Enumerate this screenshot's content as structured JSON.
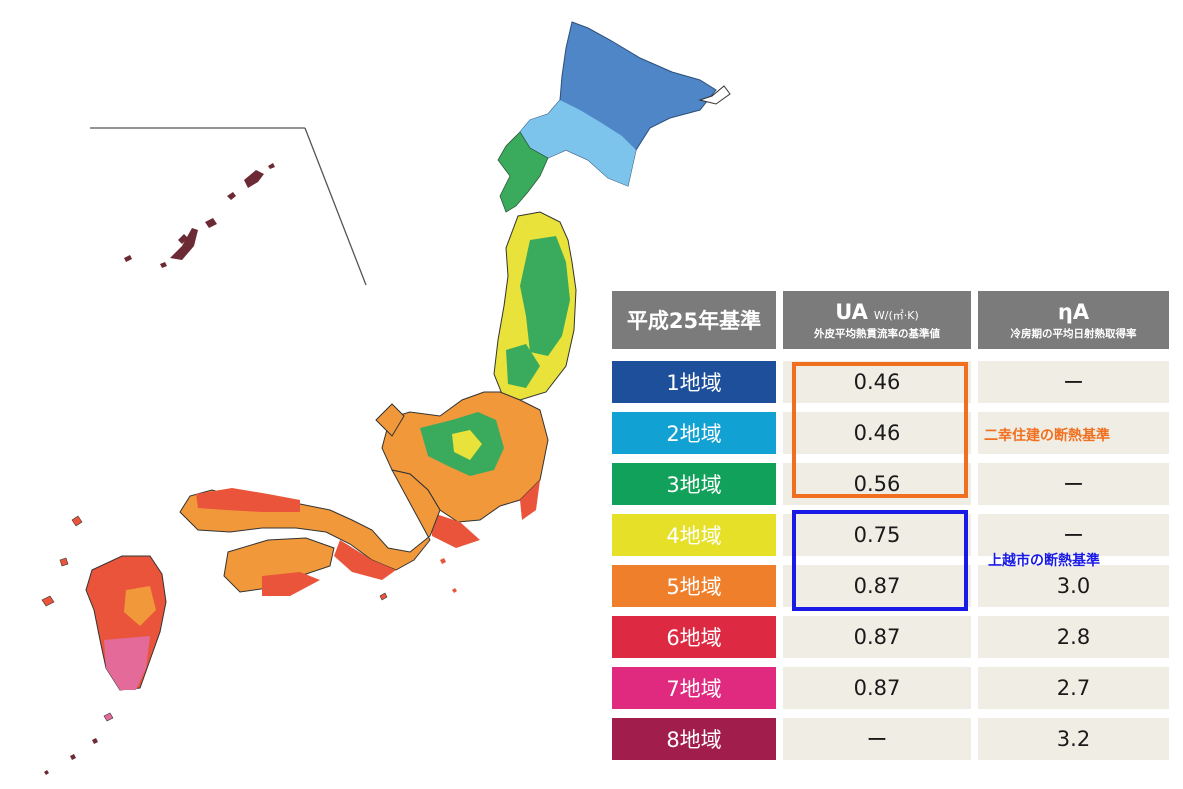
{
  "table": {
    "header_standard": "平成25年基準",
    "header_ua": "UA",
    "header_ua_unit": "W/(㎡·K)",
    "header_ua_sub": "外皮平均熱貫流率の基準値",
    "header_eta": "ηA",
    "header_eta_sub": "冷房期の平均日射熱取得率",
    "rows": [
      {
        "zone": "1地域",
        "ua": "0.46",
        "eta": "ー",
        "color": "#1e4f9a"
      },
      {
        "zone": "2地域",
        "ua": "0.46",
        "eta": "",
        "color": "#12a1d3"
      },
      {
        "zone": "3地域",
        "ua": "0.56",
        "eta": "ー",
        "color": "#12a15a"
      },
      {
        "zone": "4地域",
        "ua": "0.75",
        "eta": "ー",
        "color": "#e6e128"
      },
      {
        "zone": "5地域",
        "ua": "0.87",
        "eta": "3.0",
        "color": "#ef7f2a"
      },
      {
        "zone": "6地域",
        "ua": "0.87",
        "eta": "2.8",
        "color": "#dd2a42"
      },
      {
        "zone": "7地域",
        "ua": "0.87",
        "eta": "2.7",
        "color": "#df2a80"
      },
      {
        "zone": "8地域",
        "ua": "ー",
        "eta": "3.2",
        "color": "#a11e4c"
      }
    ]
  },
  "annotations": {
    "nikou_label": "二幸住建の断熱基準",
    "nikou_color": "#f07020",
    "joetsu_label": "上越市の断熱基準",
    "joetsu_color": "#1a1ae6"
  },
  "map_colors": {
    "zone1": "#4e86c8",
    "zone2": "#7cc4ec",
    "zone3": "#3aab5c",
    "zone4": "#e8e23a",
    "zone5": "#f0983a",
    "zone6": "#e9543a",
    "zone7": "#e46a9a",
    "islands": "#6b2a34"
  }
}
